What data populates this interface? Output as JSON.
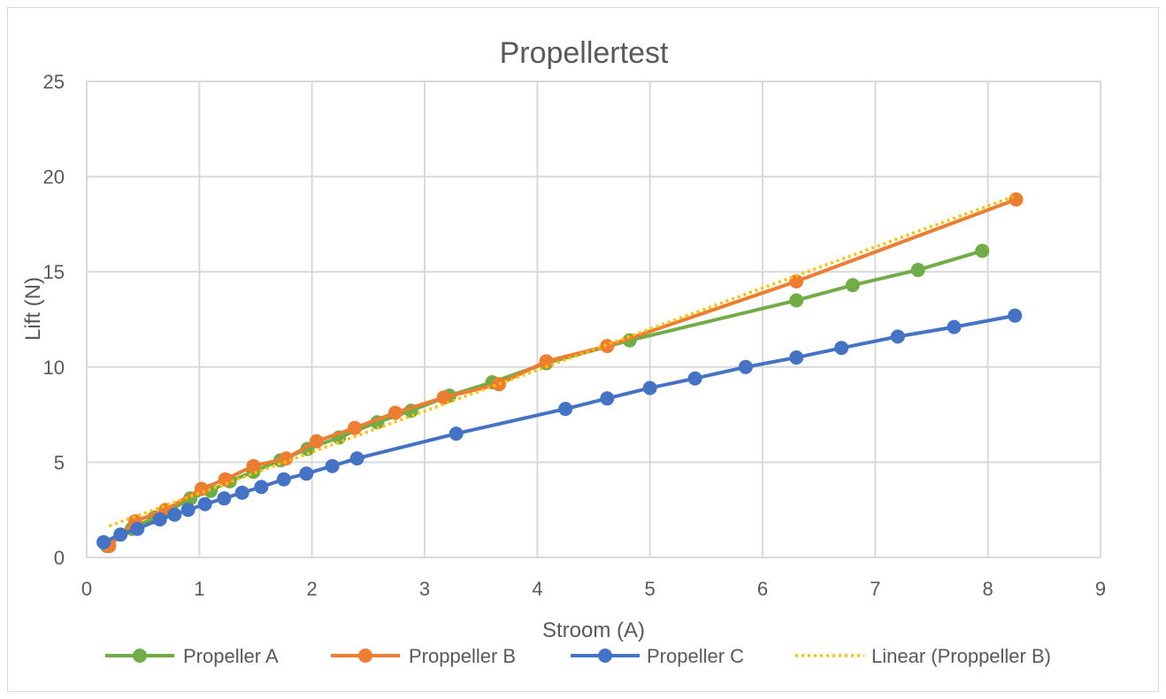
{
  "chart_data": {
    "type": "scatter",
    "title": "Propellertest",
    "xlabel": "Stroom (A)",
    "ylabel": "Lift (N)",
    "xlim": [
      0,
      9
    ],
    "ylim": [
      0,
      25
    ],
    "x_ticks": [
      "0",
      "1",
      "2",
      "3",
      "4",
      "5",
      "6",
      "7",
      "8",
      "9"
    ],
    "y_ticks": [
      "0",
      "5",
      "10",
      "15",
      "20",
      "25"
    ],
    "grid": true,
    "legend_position": "bottom",
    "series": [
      {
        "name": "Propeller A",
        "color": "#70ad47",
        "style": "line-markers",
        "points": [
          [
            0.18,
            0.6
          ],
          [
            0.4,
            1.5
          ],
          [
            0.6,
            2.1
          ],
          [
            0.72,
            2.4
          ],
          [
            0.92,
            3.1
          ],
          [
            1.1,
            3.5
          ],
          [
            1.27,
            4.0
          ],
          [
            1.48,
            4.5
          ],
          [
            1.72,
            5.1
          ],
          [
            1.96,
            5.7
          ],
          [
            2.24,
            6.3
          ],
          [
            2.58,
            7.1
          ],
          [
            2.88,
            7.7
          ],
          [
            3.22,
            8.5
          ],
          [
            3.6,
            9.2
          ],
          [
            4.08,
            10.2
          ],
          [
            4.82,
            11.4
          ],
          [
            6.3,
            13.5
          ],
          [
            6.8,
            14.3
          ],
          [
            7.38,
            15.1
          ],
          [
            7.95,
            16.1
          ]
        ]
      },
      {
        "name": "Proppeller B",
        "color": "#ed7d31",
        "style": "line-markers",
        "points": [
          [
            0.2,
            0.6
          ],
          [
            0.43,
            1.9
          ],
          [
            0.7,
            2.5
          ],
          [
            1.02,
            3.6
          ],
          [
            1.23,
            4.1
          ],
          [
            1.48,
            4.8
          ],
          [
            1.77,
            5.2
          ],
          [
            2.04,
            6.1
          ],
          [
            2.38,
            6.8
          ],
          [
            2.74,
            7.6
          ],
          [
            3.17,
            8.4
          ],
          [
            3.66,
            9.1
          ],
          [
            4.08,
            10.3
          ],
          [
            4.62,
            11.1
          ],
          [
            6.3,
            14.5
          ],
          [
            8.25,
            18.8
          ]
        ]
      },
      {
        "name": "Propeller C",
        "color": "#4472c4",
        "style": "line-markers",
        "points": [
          [
            0.15,
            0.8
          ],
          [
            0.3,
            1.2
          ],
          [
            0.45,
            1.5
          ],
          [
            0.65,
            2.0
          ],
          [
            0.78,
            2.25
          ],
          [
            0.9,
            2.5
          ],
          [
            1.05,
            2.8
          ],
          [
            1.22,
            3.1
          ],
          [
            1.38,
            3.4
          ],
          [
            1.55,
            3.7
          ],
          [
            1.75,
            4.1
          ],
          [
            1.95,
            4.4
          ],
          [
            2.18,
            4.8
          ],
          [
            2.4,
            5.2
          ],
          [
            3.28,
            6.5
          ],
          [
            4.25,
            7.8
          ],
          [
            4.62,
            8.35
          ],
          [
            5.0,
            8.9
          ],
          [
            5.4,
            9.4
          ],
          [
            5.85,
            10.0
          ],
          [
            6.3,
            10.5
          ],
          [
            6.7,
            11.0
          ],
          [
            7.2,
            11.6
          ],
          [
            7.7,
            12.1
          ],
          [
            8.24,
            12.7
          ]
        ]
      },
      {
        "name": "Linear (Proppeller B)",
        "color": "#ffc000",
        "style": "dotted-trendline",
        "points": [
          [
            0.2,
            1.65
          ],
          [
            8.25,
            19.0
          ]
        ]
      }
    ]
  }
}
